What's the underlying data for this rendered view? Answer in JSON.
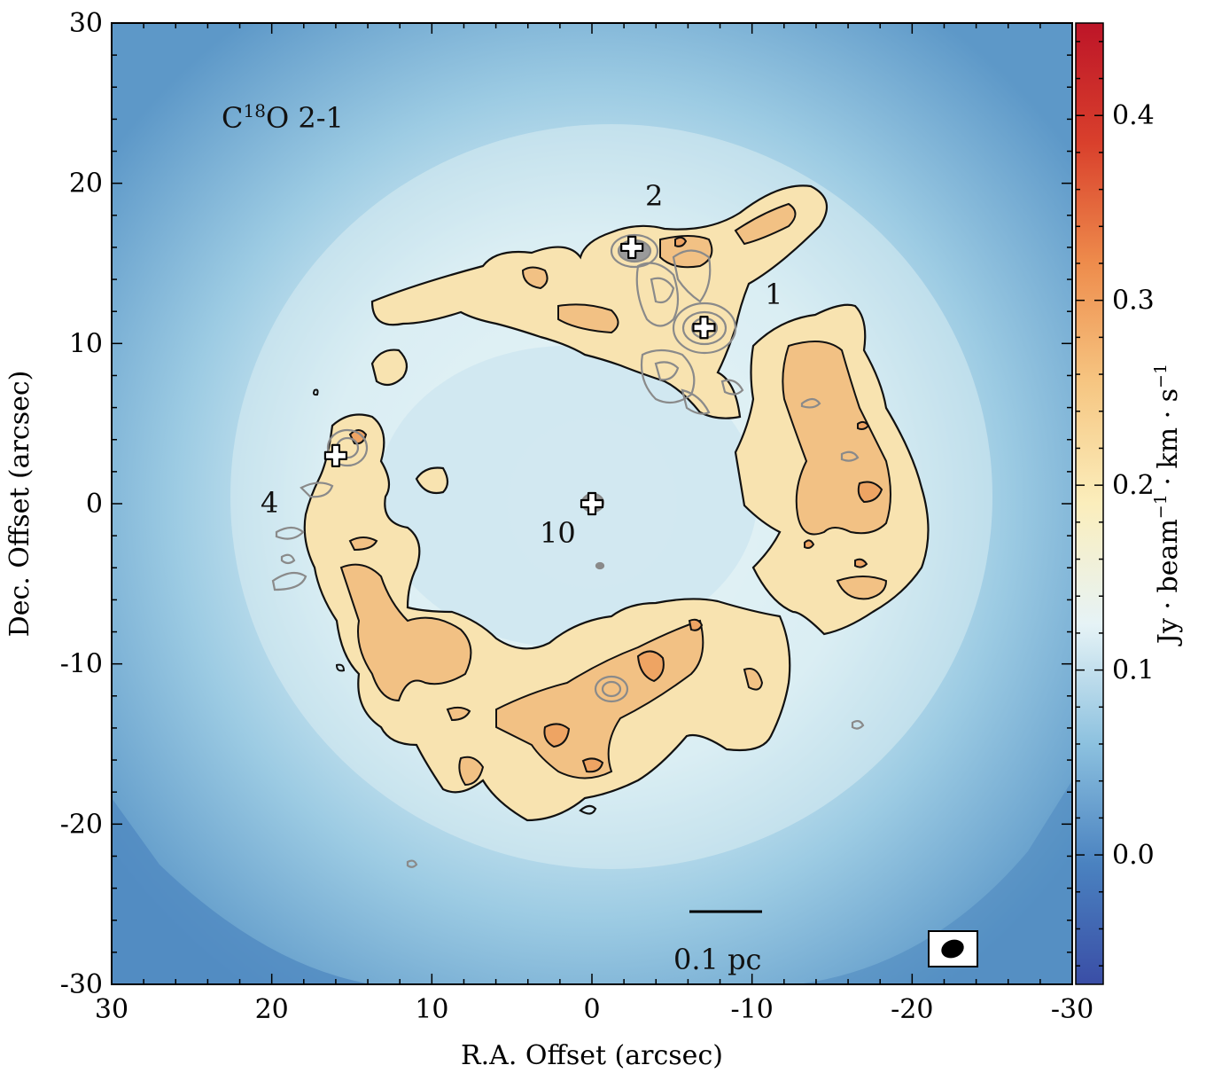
{
  "chart_data": {
    "type": "heatmap",
    "title": "C¹⁸O 2-1",
    "title_main": "C",
    "title_sup": "18",
    "title_rest": "O 2-1",
    "xlabel": "R.A. Offset (arcsec)",
    "ylabel": "Dec. Offset (arcsec)",
    "xlim": [
      30,
      -30
    ],
    "ylim": [
      -30,
      30
    ],
    "xticks": [
      30,
      20,
      10,
      0,
      -10,
      -20,
      -30
    ],
    "xtick_labels": [
      "30",
      "20",
      "10",
      "0",
      "-10",
      "-20",
      "-30"
    ],
    "yticks": [
      30,
      20,
      10,
      0,
      -10,
      -20,
      -30
    ],
    "ytick_labels": [
      "30",
      "20",
      "10",
      "0",
      "-10",
      "-20",
      "-30"
    ],
    "colorbar": {
      "label": "Jy · beam⁻¹ · km · s⁻¹",
      "label_parts": [
        "Jy · beam",
        "−1",
        " · km · s",
        "−1"
      ],
      "range": [
        -0.07,
        0.45
      ],
      "ticks": [
        0.0,
        0.1,
        0.2,
        0.3,
        0.4
      ],
      "tick_labels": [
        "0.0",
        "0.1",
        "0.2",
        "0.3",
        "0.4"
      ],
      "colors": [
        "#3a4ea6",
        "#4a82c0",
        "#8cc1df",
        "#e6f3f6",
        "#fbeebc",
        "#f6c682",
        "#ee8c4c",
        "#d9402c",
        "#bd1528"
      ]
    },
    "sources": [
      {
        "label": "1",
        "ra": -7.0,
        "dec": 11.0
      },
      {
        "label": "2",
        "ra": -2.5,
        "dec": 16.0
      },
      {
        "label": "4",
        "ra": 16.0,
        "dec": 3.0
      },
      {
        "label": "10",
        "ra": 0.0,
        "dec": 0.0
      }
    ],
    "scale_bar_label": "0.1 pc",
    "structure": "ring of C18O emission (~0.2–0.3 Jy/beam km/s) surrounding a low-emission cavity; black contours trace C18O, grey contours trace continuum around sources 1, 2, 4"
  }
}
